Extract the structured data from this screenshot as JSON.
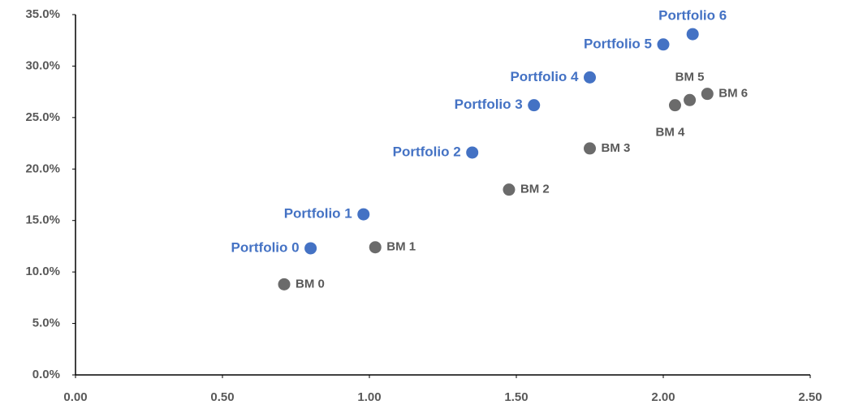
{
  "chart_data": {
    "type": "scatter",
    "series": [
      {
        "name": "Portfolio",
        "color": "#4472c4",
        "x": [
          0.8,
          0.98,
          1.35,
          1.56,
          1.75,
          2.0,
          2.1
        ],
        "values": [
          12.3,
          15.6,
          21.6,
          26.2,
          28.9,
          32.1,
          33.1
        ],
        "labels": [
          "Portfolio 0",
          "Portfolio 1",
          "Portfolio 2",
          "Portfolio 3",
          "Portfolio 4",
          "Portfolio 5",
          "Portfolio 6"
        ]
      },
      {
        "name": "BM",
        "color": "#6b6b6b",
        "x": [
          0.71,
          1.02,
          1.475,
          1.75,
          2.04,
          2.09,
          2.15
        ],
        "values": [
          8.8,
          12.4,
          18.0,
          22.0,
          26.2,
          26.7,
          27.3
        ],
        "labels": [
          "BM 0",
          "BM 1",
          "BM 2",
          "BM 3",
          "BM 4",
          "BM 5",
          "BM 6"
        ]
      }
    ],
    "xlim": [
      0,
      2.5
    ],
    "xticks": [
      {
        "value": 0,
        "label": "0.00"
      },
      {
        "value": 0.5,
        "label": "0.50"
      },
      {
        "value": 1,
        "label": "1.00"
      },
      {
        "value": 1.5,
        "label": "1.50"
      },
      {
        "value": 2,
        "label": "2.00"
      },
      {
        "value": 2.5,
        "label": "2.50"
      }
    ],
    "ylim": [
      0,
      35
    ],
    "yticks": [
      {
        "value": 0,
        "label": "0.0%"
      },
      {
        "value": 5,
        "label": "5.0%"
      },
      {
        "value": 10,
        "label": "10.0%"
      },
      {
        "value": 15,
        "label": "15.0%"
      },
      {
        "value": 20,
        "label": "20.0%"
      },
      {
        "value": 25,
        "label": "25.0%"
      },
      {
        "value": 30,
        "label": "30.0%"
      },
      {
        "value": 35,
        "label": "35.0%"
      }
    ],
    "grid": false
  }
}
